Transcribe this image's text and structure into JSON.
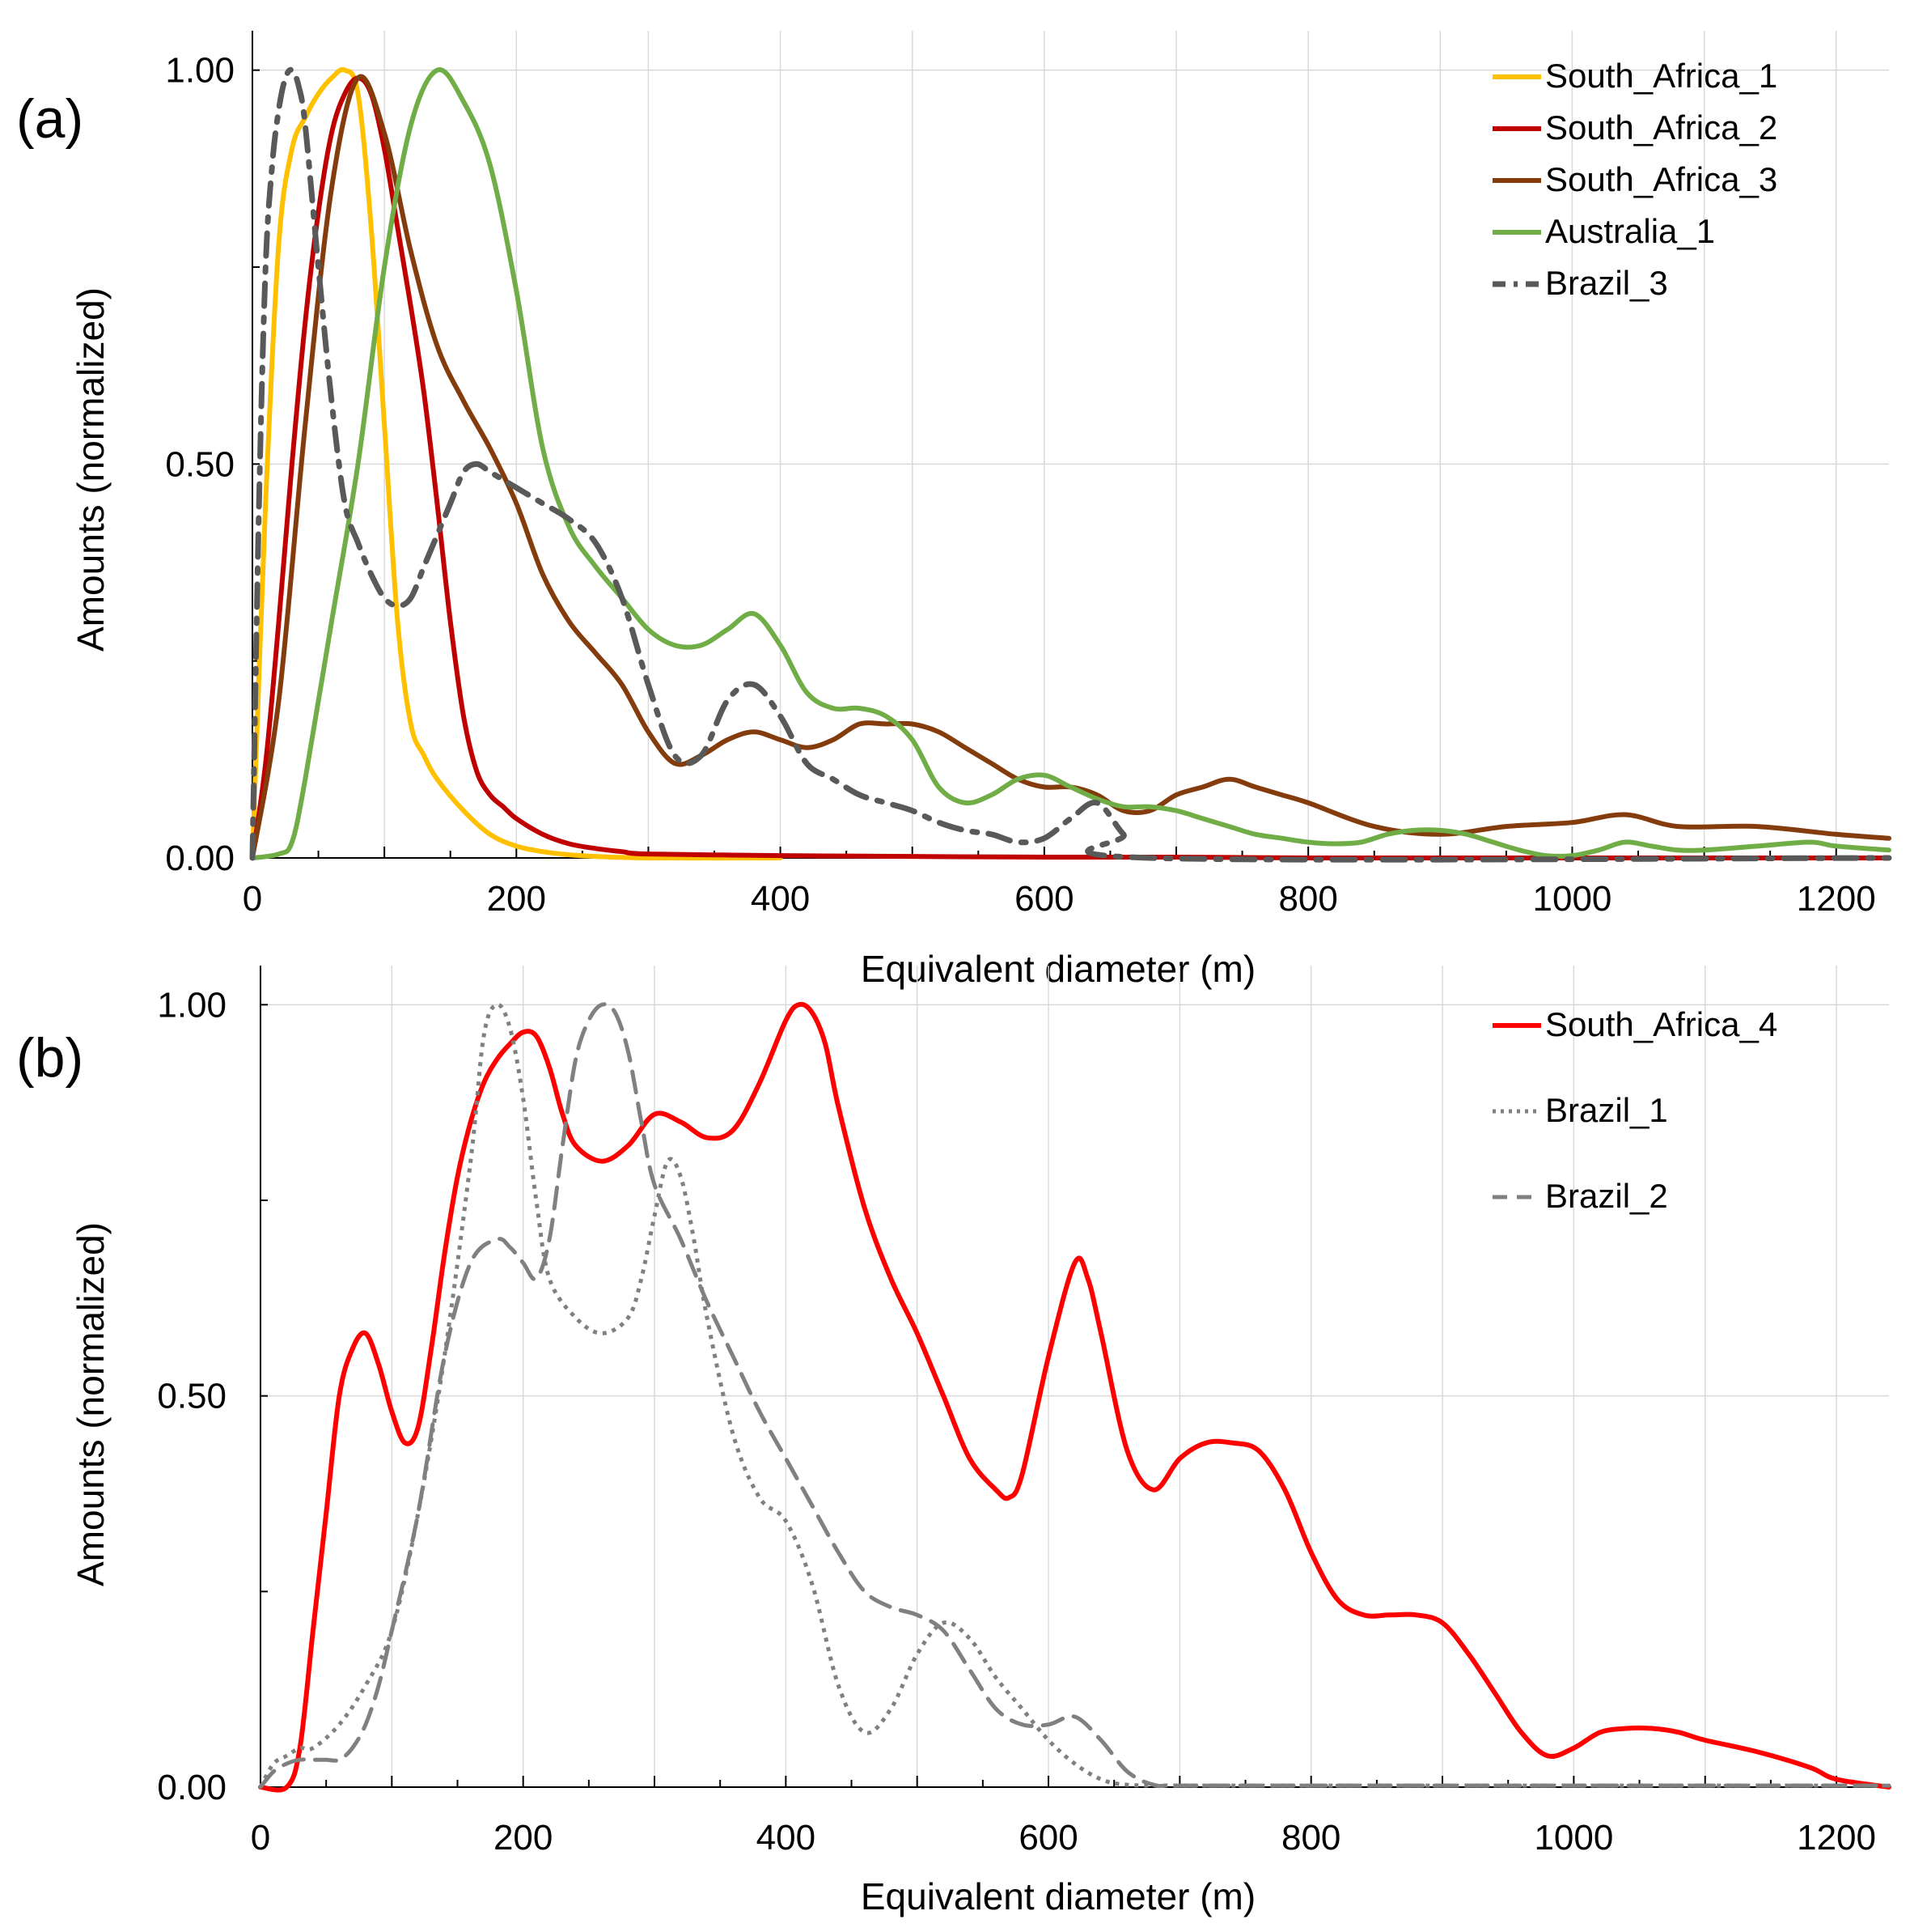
{
  "chart_data": [
    {
      "type": "line",
      "panel_label": "(a)",
      "xlabel": "Equivalent diameter (m)",
      "ylabel": "Amounts (normalized)",
      "xlim": [
        0,
        1240
      ],
      "ylim": [
        0,
        1.05
      ],
      "xticks": [
        "0",
        "200",
        "400",
        "600",
        "800",
        "1000",
        "1200"
      ],
      "yticks": [
        "0.00",
        "0.50",
        "1.00"
      ],
      "grid": true,
      "legend_position": "top-right",
      "series": [
        {
          "name": "South_Africa_1",
          "color": "#FFC000",
          "style": "solid",
          "x": [
            0,
            10,
            20,
            30,
            40,
            50,
            60,
            70,
            80,
            90,
            100,
            110,
            120,
            130,
            140,
            160,
            180,
            200,
            220,
            240,
            260,
            300,
            400
          ],
          "y": [
            0,
            0.45,
            0.78,
            0.9,
            0.94,
            0.97,
            0.99,
            1.0,
            0.97,
            0.8,
            0.55,
            0.3,
            0.17,
            0.13,
            0.1,
            0.06,
            0.03,
            0.015,
            0.008,
            0.004,
            0.002,
            0,
            0
          ]
        },
        {
          "name": "South_Africa_2",
          "color": "#C00000",
          "style": "solid",
          "x": [
            0,
            10,
            20,
            30,
            40,
            50,
            60,
            70,
            80,
            90,
            100,
            110,
            120,
            130,
            140,
            150,
            160,
            170,
            180,
            190,
            200,
            220,
            240,
            260,
            280,
            300,
            400,
            500,
            600,
            700,
            800,
            900,
            1000,
            1100,
            1240
          ],
          "y": [
            0,
            0.12,
            0.3,
            0.5,
            0.68,
            0.82,
            0.92,
            0.97,
            0.99,
            0.97,
            0.9,
            0.8,
            0.7,
            0.59,
            0.45,
            0.3,
            0.18,
            0.11,
            0.08,
            0.065,
            0.05,
            0.03,
            0.018,
            0.012,
            0.008,
            0.005,
            0.003,
            0.002,
            0.001,
            0.001,
            0,
            0,
            0,
            0,
            0
          ]
        },
        {
          "name": "South_Africa_3",
          "color": "#843C0C",
          "style": "solid",
          "x": [
            0,
            20,
            40,
            60,
            80,
            100,
            120,
            140,
            160,
            180,
            200,
            220,
            240,
            260,
            280,
            300,
            320,
            340,
            360,
            380,
            400,
            420,
            440,
            460,
            480,
            500,
            520,
            540,
            560,
            580,
            600,
            620,
            640,
            660,
            680,
            700,
            720,
            740,
            760,
            780,
            800,
            850,
            900,
            950,
            1000,
            1040,
            1080,
            1140,
            1200,
            1240
          ],
          "y": [
            0,
            0.2,
            0.55,
            0.85,
            0.99,
            0.92,
            0.77,
            0.65,
            0.58,
            0.52,
            0.45,
            0.36,
            0.3,
            0.26,
            0.22,
            0.16,
            0.12,
            0.13,
            0.15,
            0.16,
            0.15,
            0.14,
            0.15,
            0.17,
            0.17,
            0.17,
            0.16,
            0.14,
            0.12,
            0.1,
            0.09,
            0.09,
            0.08,
            0.06,
            0.06,
            0.08,
            0.09,
            0.1,
            0.09,
            0.08,
            0.07,
            0.04,
            0.03,
            0.04,
            0.045,
            0.055,
            0.04,
            0.04,
            0.03,
            0.025
          ]
        },
        {
          "name": "Australia_1",
          "color": "#70AD47",
          "style": "solid",
          "x": [
            0,
            20,
            30,
            40,
            60,
            80,
            100,
            120,
            140,
            160,
            180,
            200,
            220,
            240,
            260,
            280,
            300,
            320,
            340,
            360,
            380,
            400,
            420,
            440,
            460,
            480,
            500,
            520,
            540,
            560,
            580,
            600,
            620,
            640,
            660,
            680,
            700,
            720,
            740,
            760,
            780,
            800,
            820,
            840,
            860,
            880,
            900,
            920,
            940,
            960,
            980,
            1000,
            1020,
            1040,
            1060,
            1080,
            1100,
            1140,
            1180,
            1200,
            1240
          ],
          "y": [
            0,
            0.005,
            0.02,
            0.1,
            0.3,
            0.5,
            0.75,
            0.93,
            1.0,
            0.96,
            0.88,
            0.72,
            0.52,
            0.42,
            0.37,
            0.33,
            0.29,
            0.27,
            0.27,
            0.29,
            0.31,
            0.27,
            0.21,
            0.19,
            0.19,
            0.18,
            0.15,
            0.09,
            0.07,
            0.08,
            0.1,
            0.105,
            0.09,
            0.075,
            0.065,
            0.065,
            0.06,
            0.05,
            0.04,
            0.03,
            0.025,
            0.02,
            0.018,
            0.02,
            0.03,
            0.035,
            0.035,
            0.03,
            0.02,
            0.01,
            0.003,
            0.003,
            0.01,
            0.02,
            0.015,
            0.01,
            0.01,
            0.015,
            0.02,
            0.015,
            0.01
          ]
        },
        {
          "name": "Brazil_3",
          "color": "#595959",
          "style": "dashdot",
          "x": [
            0,
            5,
            10,
            15,
            20,
            25,
            30,
            35,
            40,
            50,
            60,
            70,
            80,
            90,
            100,
            110,
            120,
            130,
            140,
            150,
            160,
            170,
            180,
            190,
            200,
            220,
            240,
            260,
            280,
            300,
            320,
            340,
            360,
            380,
            400,
            420,
            440,
            460,
            480,
            500,
            520,
            540,
            560,
            580,
            600,
            620,
            640,
            660,
            680,
            1240
          ],
          "y": [
            0,
            0.45,
            0.75,
            0.88,
            0.95,
            0.99,
            1.0,
            0.98,
            0.93,
            0.75,
            0.58,
            0.45,
            0.4,
            0.36,
            0.33,
            0.32,
            0.33,
            0.37,
            0.41,
            0.45,
            0.49,
            0.5,
            0.49,
            0.48,
            0.47,
            0.45,
            0.43,
            0.4,
            0.33,
            0.22,
            0.13,
            0.13,
            0.2,
            0.22,
            0.18,
            0.12,
            0.1,
            0.08,
            0.07,
            0.06,
            0.045,
            0.035,
            0.03,
            0.02,
            0.025,
            0.05,
            0.07,
            0.03,
            0,
            0
          ]
        }
      ]
    },
    {
      "type": "line",
      "panel_label": "(b)",
      "xlabel": "Equivalent diameter (m)",
      "ylabel": "Amounts (normalized)",
      "xlim": [
        0,
        1240
      ],
      "ylim": [
        0,
        1.05
      ],
      "xticks": [
        "0",
        "200",
        "400",
        "600",
        "800",
        "1000",
        "1200"
      ],
      "yticks": [
        "0.00",
        "0.50",
        "1.00"
      ],
      "grid": true,
      "legend_position": "top-right",
      "series": [
        {
          "name": "South_Africa_4",
          "color": "#FF0000",
          "style": "solid",
          "x": [
            0,
            20,
            30,
            40,
            50,
            60,
            70,
            80,
            90,
            100,
            110,
            120,
            130,
            140,
            150,
            160,
            170,
            180,
            190,
            200,
            210,
            220,
            230,
            240,
            260,
            280,
            300,
            320,
            340,
            360,
            380,
            400,
            410,
            420,
            430,
            440,
            460,
            480,
            500,
            520,
            540,
            560,
            570,
            580,
            600,
            620,
            630,
            640,
            660,
            680,
            700,
            720,
            740,
            760,
            780,
            800,
            820,
            840,
            860,
            880,
            900,
            920,
            940,
            960,
            980,
            1000,
            1020,
            1040,
            1060,
            1080,
            1100,
            1140,
            1180,
            1200,
            1240
          ],
          "y": [
            0,
            0,
            0.05,
            0.2,
            0.35,
            0.5,
            0.56,
            0.58,
            0.54,
            0.48,
            0.44,
            0.46,
            0.56,
            0.68,
            0.78,
            0.85,
            0.9,
            0.93,
            0.95,
            0.965,
            0.96,
            0.92,
            0.86,
            0.82,
            0.8,
            0.82,
            0.86,
            0.85,
            0.83,
            0.84,
            0.9,
            0.98,
            1.0,
            0.99,
            0.95,
            0.87,
            0.74,
            0.65,
            0.58,
            0.5,
            0.42,
            0.38,
            0.37,
            0.4,
            0.55,
            0.67,
            0.65,
            0.58,
            0.43,
            0.38,
            0.42,
            0.44,
            0.44,
            0.43,
            0.38,
            0.3,
            0.24,
            0.22,
            0.22,
            0.22,
            0.21,
            0.17,
            0.12,
            0.07,
            0.04,
            0.05,
            0.07,
            0.075,
            0.075,
            0.07,
            0.06,
            0.045,
            0.025,
            0.01,
            0
          ]
        },
        {
          "name": "Brazil_1",
          "color": "#808080",
          "style": "dotted",
          "x": [
            0,
            10,
            20,
            30,
            40,
            60,
            80,
            100,
            120,
            140,
            160,
            170,
            180,
            190,
            200,
            210,
            220,
            240,
            260,
            280,
            290,
            300,
            310,
            320,
            330,
            340,
            360,
            380,
            400,
            420,
            440,
            460,
            480,
            500,
            520,
            540,
            560,
            580,
            600,
            620,
            640,
            660,
            700,
            800,
            900,
            1000,
            1100,
            1240
          ],
          "y": [
            0,
            0.03,
            0.04,
            0.05,
            0.05,
            0.08,
            0.13,
            0.2,
            0.35,
            0.55,
            0.8,
            0.96,
            1.0,
            0.97,
            0.88,
            0.75,
            0.65,
            0.6,
            0.58,
            0.6,
            0.65,
            0.73,
            0.8,
            0.78,
            0.7,
            0.6,
            0.45,
            0.37,
            0.34,
            0.26,
            0.13,
            0.07,
            0.1,
            0.17,
            0.21,
            0.19,
            0.14,
            0.1,
            0.06,
            0.03,
            0.01,
            0.003,
            0.002,
            0.002,
            0.002,
            0.002,
            0.002,
            0.002
          ]
        },
        {
          "name": "Brazil_2",
          "color": "#808080",
          "style": "dashed",
          "x": [
            0,
            10,
            20,
            30,
            40,
            50,
            60,
            70,
            80,
            90,
            100,
            120,
            140,
            160,
            180,
            190,
            200,
            210,
            220,
            230,
            240,
            250,
            260,
            270,
            280,
            290,
            300,
            320,
            340,
            360,
            380,
            400,
            420,
            440,
            460,
            480,
            500,
            520,
            540,
            560,
            580,
            600,
            620,
            640,
            660,
            680,
            700,
            800,
            900,
            1000,
            1100,
            1240
          ],
          "y": [
            0,
            0.02,
            0.03,
            0.035,
            0.035,
            0.035,
            0.035,
            0.05,
            0.08,
            0.13,
            0.2,
            0.35,
            0.55,
            0.67,
            0.7,
            0.69,
            0.67,
            0.65,
            0.7,
            0.82,
            0.93,
            0.98,
            1.0,
            0.99,
            0.94,
            0.85,
            0.77,
            0.7,
            0.62,
            0.55,
            0.48,
            0.42,
            0.36,
            0.3,
            0.25,
            0.23,
            0.22,
            0.2,
            0.15,
            0.1,
            0.08,
            0.08,
            0.09,
            0.06,
            0.02,
            0.003,
            0.002,
            0.002,
            0.002,
            0.002,
            0.002,
            0.002
          ]
        }
      ]
    }
  ]
}
